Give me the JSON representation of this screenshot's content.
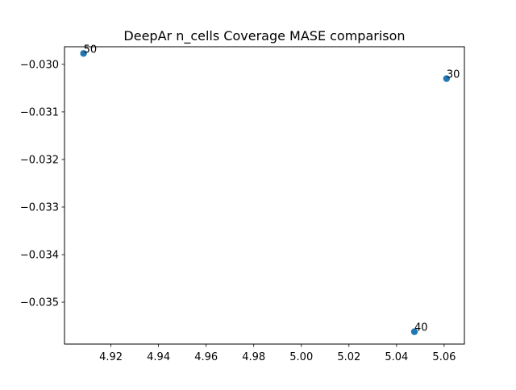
{
  "chart_data": {
    "type": "scatter",
    "title": "DeepAr n_cells Coverage MASE comparison",
    "xlabel": "",
    "ylabel": "",
    "xlim": [
      4.9005,
      5.0685
    ],
    "ylim": [
      -0.03588,
      -0.02963
    ],
    "xticks": [
      "4.92",
      "4.94",
      "4.96",
      "4.98",
      "5.00",
      "5.02",
      "5.04",
      "5.06"
    ],
    "xtick_values": [
      4.92,
      4.94,
      4.96,
      4.98,
      5.0,
      5.02,
      5.04,
      5.06
    ],
    "yticks": [
      "−0.030",
      "−0.031",
      "−0.032",
      "−0.033",
      "−0.034",
      "−0.035"
    ],
    "ytick_values": [
      -0.03,
      -0.031,
      -0.032,
      -0.033,
      -0.034,
      -0.035
    ],
    "grid": false,
    "points": [
      {
        "x": 4.9085,
        "y": -0.02977,
        "label": "50"
      },
      {
        "x": 5.061,
        "y": -0.0303,
        "label": "30"
      },
      {
        "x": 5.0475,
        "y": -0.03562,
        "label": "40"
      }
    ],
    "marker_color": "#1f77b4"
  }
}
